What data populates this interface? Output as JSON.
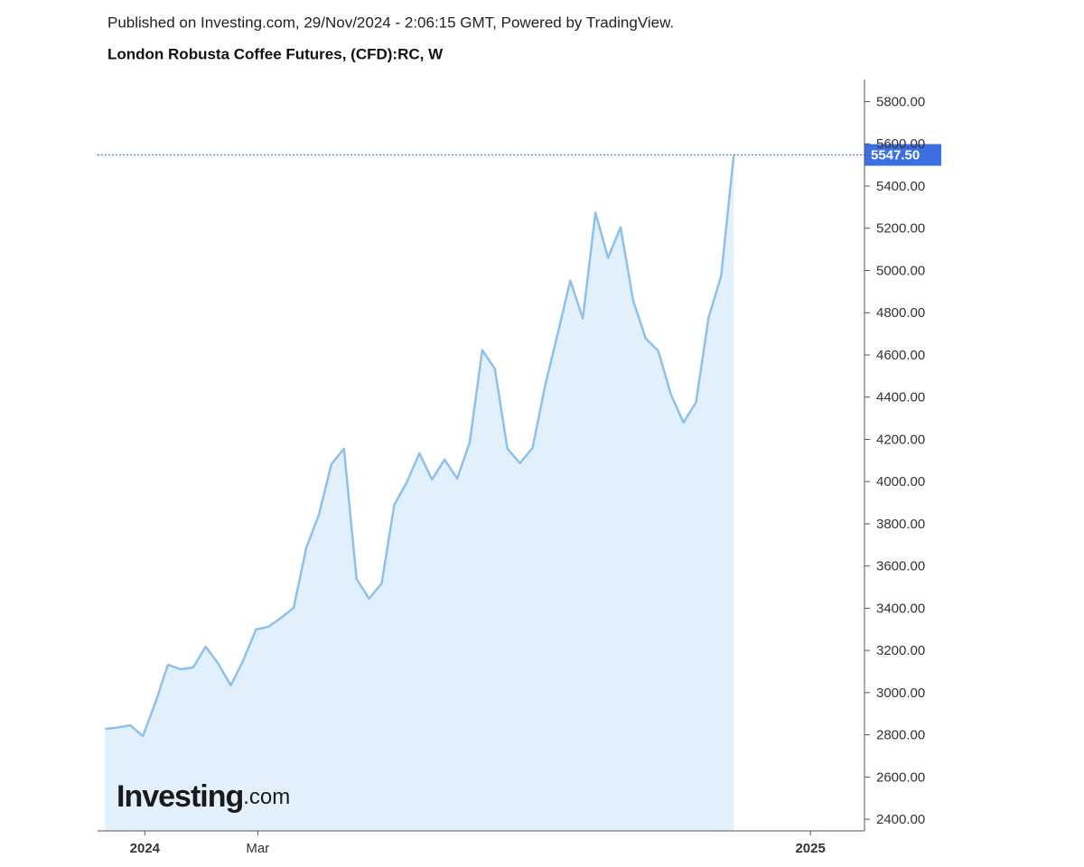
{
  "chart_data": {
    "type": "area",
    "header": "Published on Investing.com, 29/Nov/2024 - 2:06:15 GMT, Powered by TradingView.",
    "title": "London Robusta Coffee Futures, (CFD):RC, W",
    "watermark": "Investing",
    "watermark_suffix": ".com",
    "categories": [
      null,
      null,
      null,
      null,
      null,
      null,
      null,
      null,
      null,
      null,
      null,
      null,
      null,
      null,
      null,
      null,
      null,
      null,
      null,
      null,
      null,
      null,
      null,
      null,
      null,
      null,
      null,
      null,
      null,
      null,
      null,
      null,
      null,
      null,
      null,
      null,
      null,
      null,
      null,
      null,
      null,
      null,
      null,
      null,
      null,
      null,
      null,
      null,
      null,
      null,
      null
    ],
    "series": [
      {
        "name": "RC",
        "color": "#8ec0ec",
        "fill": "#e1f0fb",
        "values": [
          2828,
          2835,
          2845,
          2794,
          2952,
          3132,
          3111,
          3119,
          3218,
          3137,
          3034,
          3154,
          3299,
          3312,
          3355,
          3402,
          3685,
          3843,
          4083,
          4156,
          3539,
          3445,
          3518,
          3890,
          3997,
          4134,
          4010,
          4104,
          4014,
          4186,
          4623,
          4533,
          4156,
          4087,
          4160,
          4456,
          4700,
          4952,
          4773,
          5274,
          5060,
          5205,
          4858,
          4678,
          4619,
          4413,
          4280,
          4375,
          4777,
          4974,
          5547.5
        ],
        "value_labels": [
          null,
          null,
          null,
          null,
          null,
          null,
          null,
          null,
          null,
          null,
          null,
          null,
          null,
          null,
          null,
          null,
          null,
          null,
          null,
          null,
          null,
          null,
          null,
          null,
          null,
          null,
          null,
          null,
          null,
          null,
          null,
          null,
          null,
          null,
          null,
          null,
          null,
          null,
          null,
          null,
          null,
          null,
          null,
          null,
          null,
          null,
          null,
          null,
          null,
          null,
          "5547.50"
        ],
        "label_color": "#3c6fe0"
      }
    ],
    "xlim": [
      -0.6,
      60.4
    ],
    "xticks": [
      {
        "value": 3.16,
        "label": "2024"
      },
      {
        "value": 12.14,
        "label": "Mar"
      },
      {
        "value": 56.1,
        "label": "2025"
      }
    ],
    "ylim": [
      2345,
      5905
    ],
    "yticks": [
      {
        "value": 2400,
        "label": "2400.00"
      },
      {
        "value": 2600,
        "label": "2600.00"
      },
      {
        "value": 2800,
        "label": "2800.00"
      },
      {
        "value": 3000,
        "label": "3000.00"
      },
      {
        "value": 3200,
        "label": "3200.00"
      },
      {
        "value": 3400,
        "label": "3400.00"
      },
      {
        "value": 3600,
        "label": "3600.00"
      },
      {
        "value": 3800,
        "label": "3800.00"
      },
      {
        "value": 4000,
        "label": "4000.00"
      },
      {
        "value": 4200,
        "label": "4200.00"
      },
      {
        "value": 4400,
        "label": "4400.00"
      },
      {
        "value": 4600,
        "label": "4600.00"
      },
      {
        "value": 4800,
        "label": "4800.00"
      },
      {
        "value": 5000,
        "label": "5000.00"
      },
      {
        "value": 5200,
        "label": "5200.00"
      },
      {
        "value": 5400,
        "label": "5400.00"
      },
      {
        "value": 5600,
        "label": "5600.00"
      },
      {
        "value": 5800,
        "label": "5800.00"
      }
    ],
    "grid": false
  }
}
